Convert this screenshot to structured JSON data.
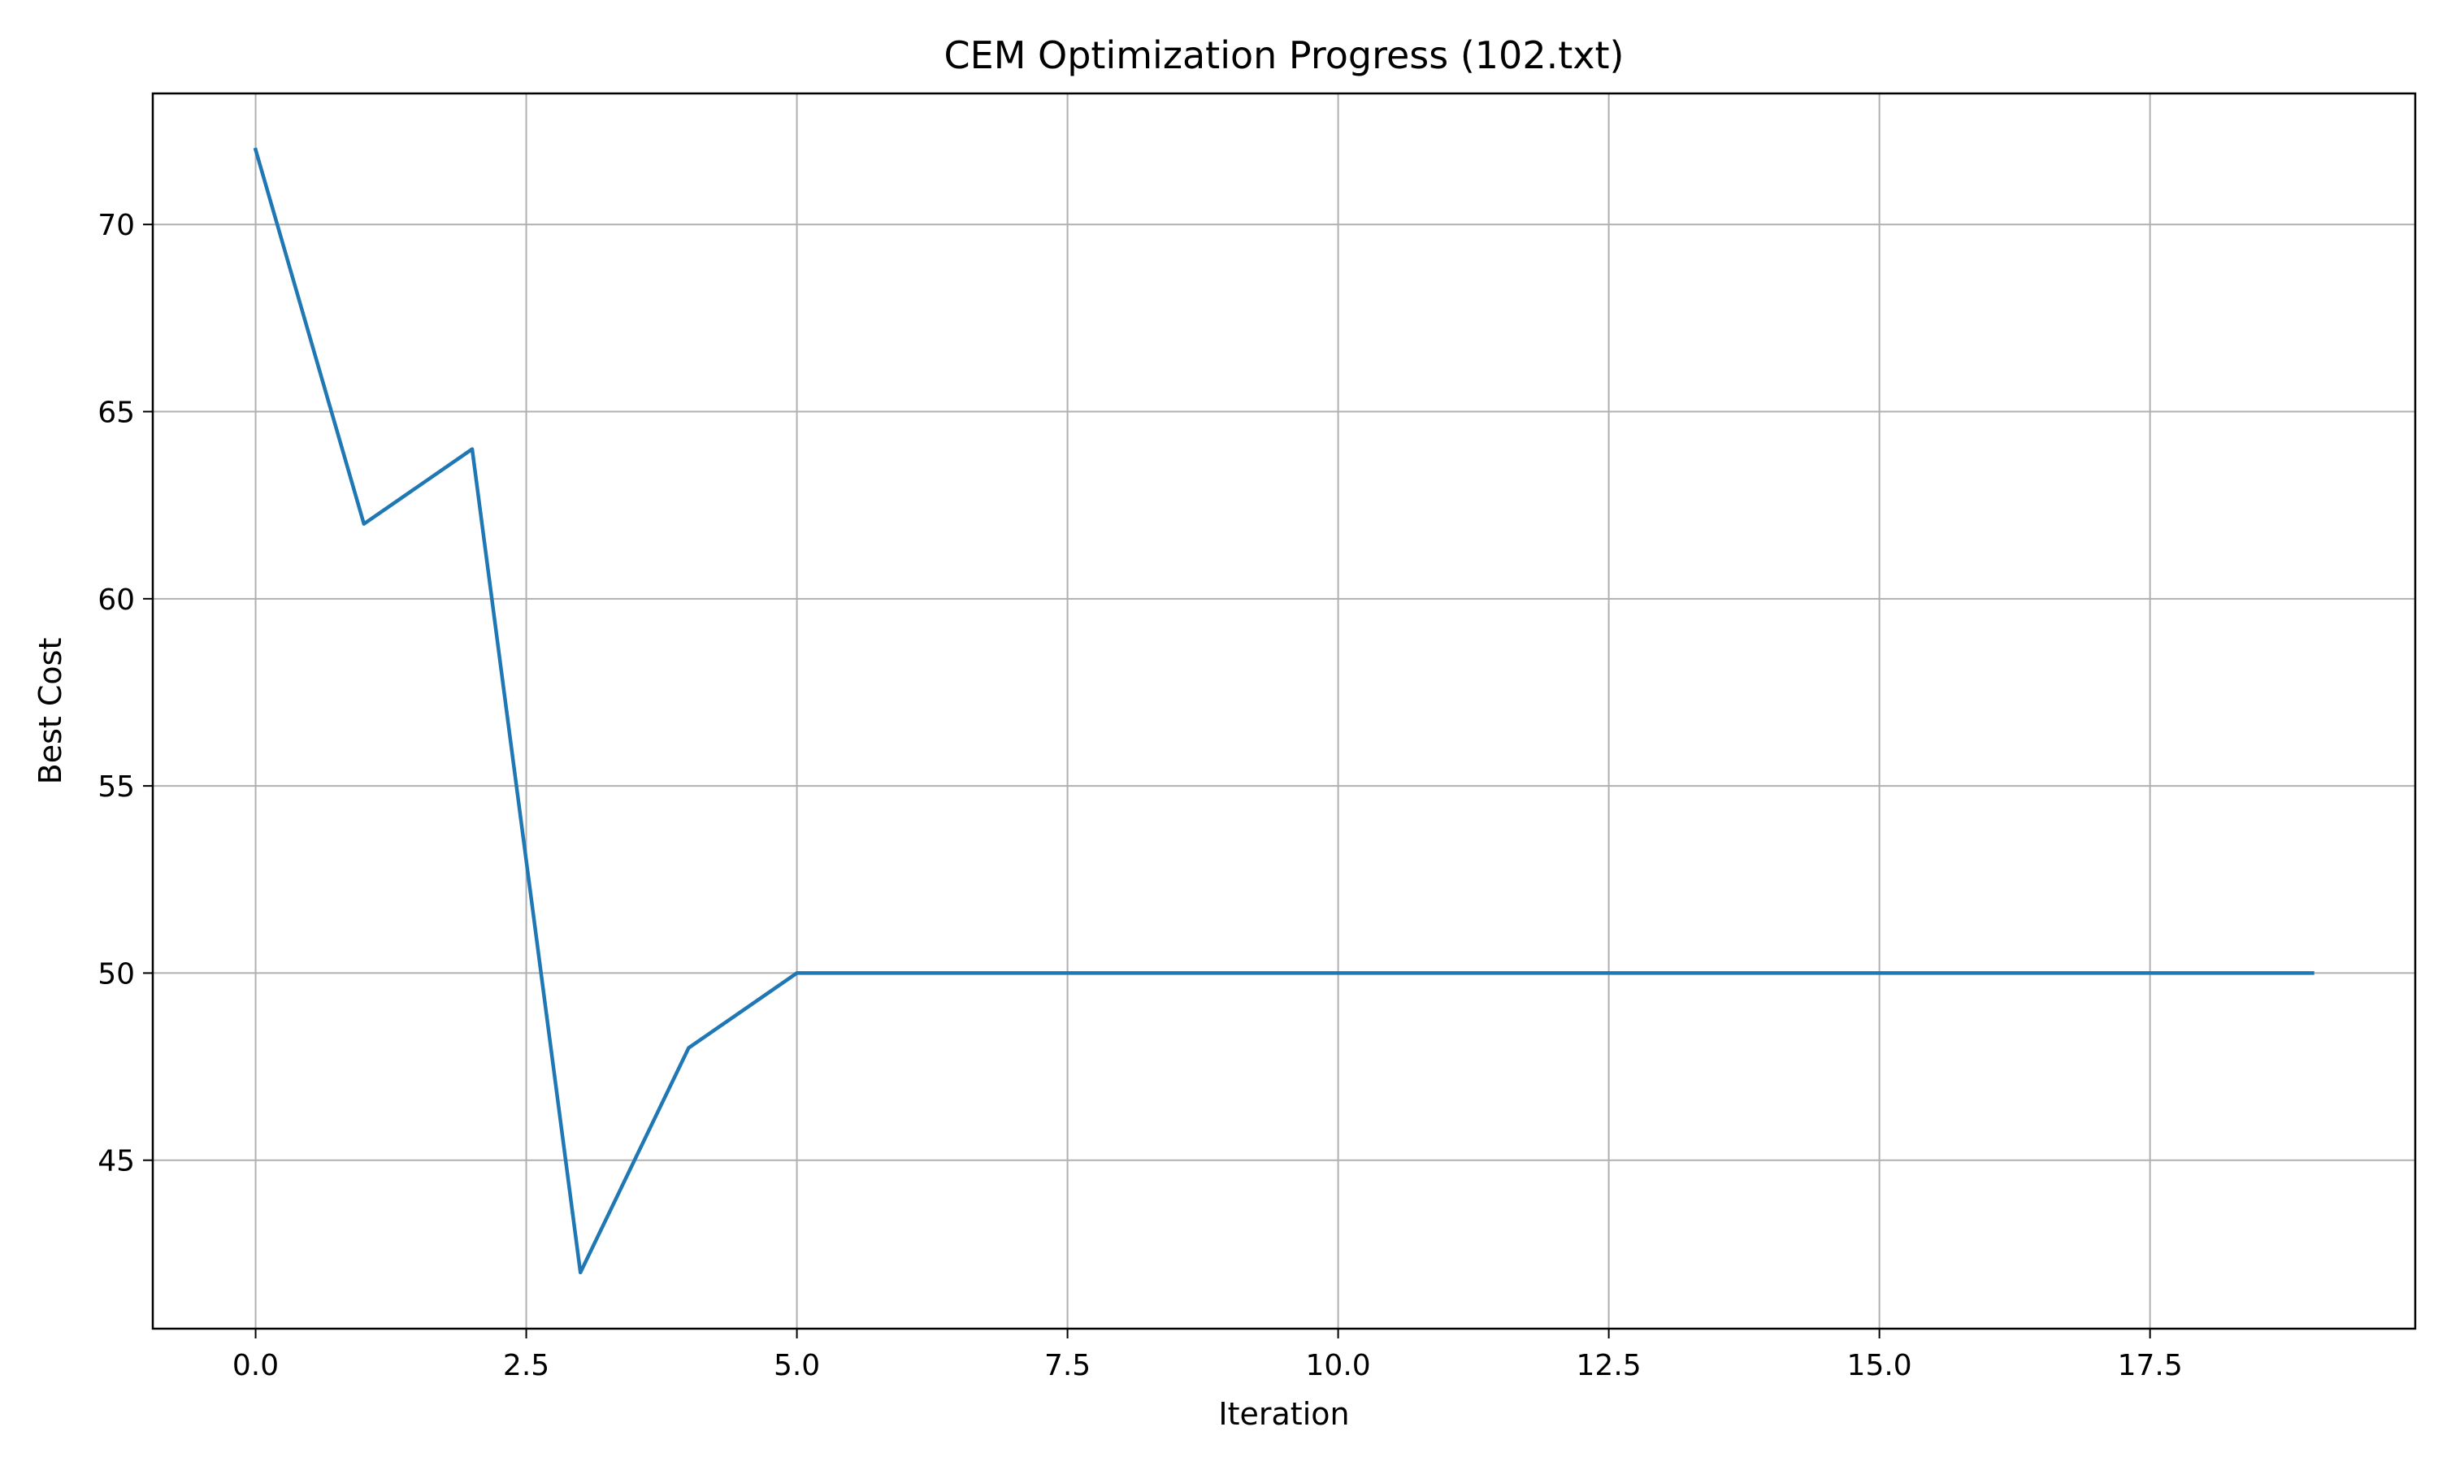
{
  "chart_data": {
    "type": "line",
    "title": "CEM Optimization Progress (102.txt)",
    "xlabel": "Iteration",
    "ylabel": "Best Cost",
    "xlim": [
      -0.95,
      19.95
    ],
    "ylim": [
      40.5,
      73.5
    ],
    "xticks": [
      0.0,
      2.5,
      5.0,
      7.5,
      10.0,
      12.5,
      15.0,
      17.5
    ],
    "xtick_labels": [
      "0.0",
      "2.5",
      "5.0",
      "7.5",
      "10.0",
      "12.5",
      "15.0",
      "17.5"
    ],
    "yticks": [
      45,
      50,
      55,
      60,
      65,
      70
    ],
    "ytick_labels": [
      "45",
      "50",
      "55",
      "60",
      "65",
      "70"
    ],
    "grid": true,
    "series": [
      {
        "color": "#1f77b4",
        "x": [
          0,
          1,
          2,
          3,
          4,
          5,
          6,
          7,
          8,
          9,
          10,
          11,
          12,
          13,
          14,
          15,
          16,
          17,
          18,
          19
        ],
        "y": [
          72,
          62,
          64,
          42,
          48,
          50,
          50,
          50,
          50,
          50,
          50,
          50,
          50,
          50,
          50,
          50,
          50,
          50,
          50,
          50
        ]
      }
    ]
  }
}
